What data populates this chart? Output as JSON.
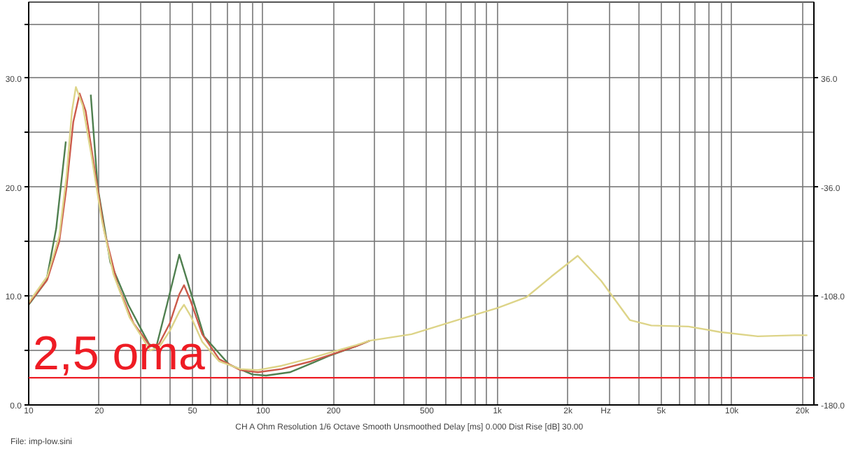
{
  "chart_data": {
    "type": "line",
    "xlabel": "Hz",
    "annotations": [
      "CH A   Ohm   Resolution 1/6 Octave   Smooth Unsmoothed   Delay [ms] 0.000   Dist Rise [dB] 30.00",
      "File: imp-low.sini"
    ],
    "log": "x",
    "grid": true,
    "marker": "none",
    "line_style": "solid",
    "xlim": [
      10,
      22400
    ],
    "ylim": [
      0,
      37
    ],
    "y2lim": [
      -180,
      86.4
    ],
    "xticks": [
      10,
      20,
      {
        "value": 30,
        "label": null
      },
      {
        "value": 40,
        "label": null
      },
      50,
      {
        "value": 60,
        "label": null
      },
      {
        "value": 70,
        "label": null
      },
      {
        "value": 80,
        "label": null
      },
      {
        "value": 90,
        "label": null
      },
      100,
      200,
      {
        "value": 300,
        "label": null
      },
      {
        "value": 400,
        "label": null
      },
      500,
      {
        "value": 600,
        "label": null
      },
      {
        "value": 700,
        "label": null
      },
      {
        "value": 800,
        "label": null
      },
      {
        "value": 900,
        "label": null
      },
      {
        "value": 1000,
        "label": "1k"
      },
      {
        "value": 2000,
        "label": "2k"
      },
      {
        "value": 3000,
        "label": null
      },
      {
        "value": 4000,
        "label": null
      },
      {
        "value": 5000,
        "label": "5k"
      },
      {
        "value": 6000,
        "label": null
      },
      {
        "value": 7000,
        "label": null
      },
      {
        "value": 8000,
        "label": null
      },
      {
        "value": 9000,
        "label": null
      },
      {
        "value": 10000,
        "label": "10k"
      },
      {
        "value": 20000,
        "label": "20k"
      }
    ],
    "yticks": [
      {
        "value": 0,
        "label": "0.0"
      },
      {
        "value": 5,
        "label": null
      },
      {
        "value": 10,
        "label": "10.0"
      },
      {
        "value": 15,
        "label": null
      },
      {
        "value": 20,
        "label": "20.0"
      },
      {
        "value": 25,
        "label": null
      },
      {
        "value": 30,
        "label": "30.0"
      },
      {
        "value": 35,
        "label": null
      }
    ],
    "y2ticks": [
      {
        "value": -180,
        "label": "-180.0"
      },
      {
        "value": -108,
        "label": "-108.0"
      },
      {
        "value": -36,
        "label": "-36.0"
      },
      {
        "value": 36,
        "label": "36.0"
      }
    ],
    "ref_lines": [
      {
        "axis": "y",
        "value": 2.5,
        "label": "2,5 oma",
        "color": "#ee1c24"
      }
    ],
    "series": [
      {
        "color": "#4f7f4f",
        "x": [
          10,
          11.9,
          13.1,
          14.4,
          15.0,
          17.5,
          18.4,
          19.7,
          22.3,
          26.6,
          32.6,
          34.9,
          38.9,
          43.9,
          48.9,
          56,
          71.7,
          90,
          103,
          130,
          160,
          191,
          250,
          285
        ],
        "values": [
          9.2,
          11.4,
          16.2,
          24.2,
          null,
          null,
          28.5,
          20,
          13.1,
          9.2,
          5.6,
          5.2,
          9.2,
          13.8,
          10.5,
          6.3,
          3.7,
          2.8,
          2.7,
          3.0,
          3.8,
          4.5,
          5.4,
          5.9
        ]
      },
      {
        "color": "#cc5a4a",
        "x": [
          10,
          12,
          13.5,
          14.5,
          15.5,
          16.5,
          17.5,
          19,
          21,
          24,
          28,
          33,
          36,
          40,
          44,
          46,
          49,
          55,
          65,
          80,
          95,
          120,
          160,
          200,
          250,
          285
        ],
        "values": [
          9.3,
          11.5,
          15,
          20,
          26,
          28.6,
          27,
          22,
          16,
          11,
          7.5,
          5.4,
          5.6,
          7.5,
          10.2,
          11.0,
          9.6,
          6.5,
          4.2,
          3.2,
          3.0,
          3.3,
          4.0,
          4.7,
          5.4,
          5.9
        ]
      },
      {
        "color": "#ddd488",
        "x": [
          10,
          12,
          13.5,
          14.5,
          15.3,
          15.9,
          17,
          18.5,
          20.5,
          23,
          27,
          33,
          36,
          40,
          44,
          46,
          49,
          55,
          65,
          80,
          95,
          120,
          160,
          200,
          250,
          285,
          430,
          675,
          1000,
          1330,
          1700,
          2200,
          2770,
          3670,
          4530,
          6530,
          8900,
          12900,
          18500,
          21000
        ],
        "values": [
          9.4,
          11.8,
          15.5,
          21,
          27,
          29.2,
          27.5,
          23,
          17,
          12,
          8,
          5.0,
          5.3,
          6.8,
          8.6,
          9.2,
          8.2,
          5.8,
          4.0,
          3.3,
          3.2,
          3.6,
          4.3,
          4.9,
          5.5,
          5.9,
          6.5,
          7.8,
          8.9,
          9.9,
          11.8,
          13.7,
          11.4,
          7.8,
          7.3,
          7.2,
          6.7,
          6.3,
          6.4,
          6.4
        ]
      }
    ]
  }
}
